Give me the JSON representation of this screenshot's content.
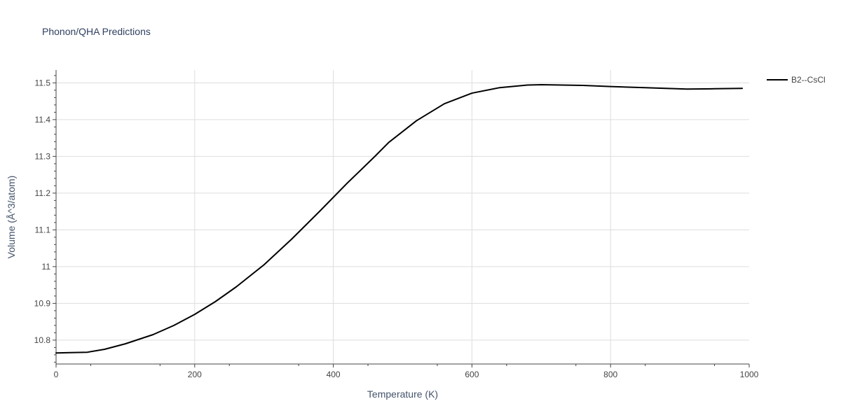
{
  "chart_data": {
    "type": "line",
    "title": "Phonon/QHA Predictions",
    "xlabel": "Temperature (K)",
    "ylabel": "Volume (Å^3/atom)",
    "xlim": [
      0,
      1000
    ],
    "ylim": [
      10.735,
      11.535
    ],
    "x_ticks": [
      0,
      200,
      400,
      600,
      800,
      1000
    ],
    "x_tick_labels": [
      "0",
      "200",
      "400",
      "600",
      "800",
      "1000"
    ],
    "y_ticks": [
      10.8,
      10.9,
      11.0,
      11.1,
      11.2,
      11.3,
      11.4,
      11.5
    ],
    "y_tick_labels": [
      "10.8",
      "10.9",
      "11",
      "11.1",
      "11.2",
      "11.3",
      "11.4",
      "11.5"
    ],
    "grid": true,
    "legend_position": "top-right",
    "series": [
      {
        "name": "B2--CsCl",
        "color": "#000000",
        "x": [
          0,
          20,
          45,
          70,
          100,
          140,
          170,
          200,
          230,
          260,
          300,
          340,
          380,
          420,
          460,
          480,
          520,
          560,
          600,
          640,
          680,
          700,
          760,
          800,
          850,
          910,
          950,
          990
        ],
        "y": [
          10.765,
          10.766,
          10.767,
          10.775,
          10.79,
          10.815,
          10.84,
          10.87,
          10.905,
          10.945,
          11.005,
          11.075,
          11.15,
          11.227,
          11.3,
          11.338,
          11.397,
          11.443,
          11.472,
          11.487,
          11.494,
          11.495,
          11.493,
          11.49,
          11.487,
          11.483,
          11.484,
          11.485
        ]
      }
    ]
  }
}
